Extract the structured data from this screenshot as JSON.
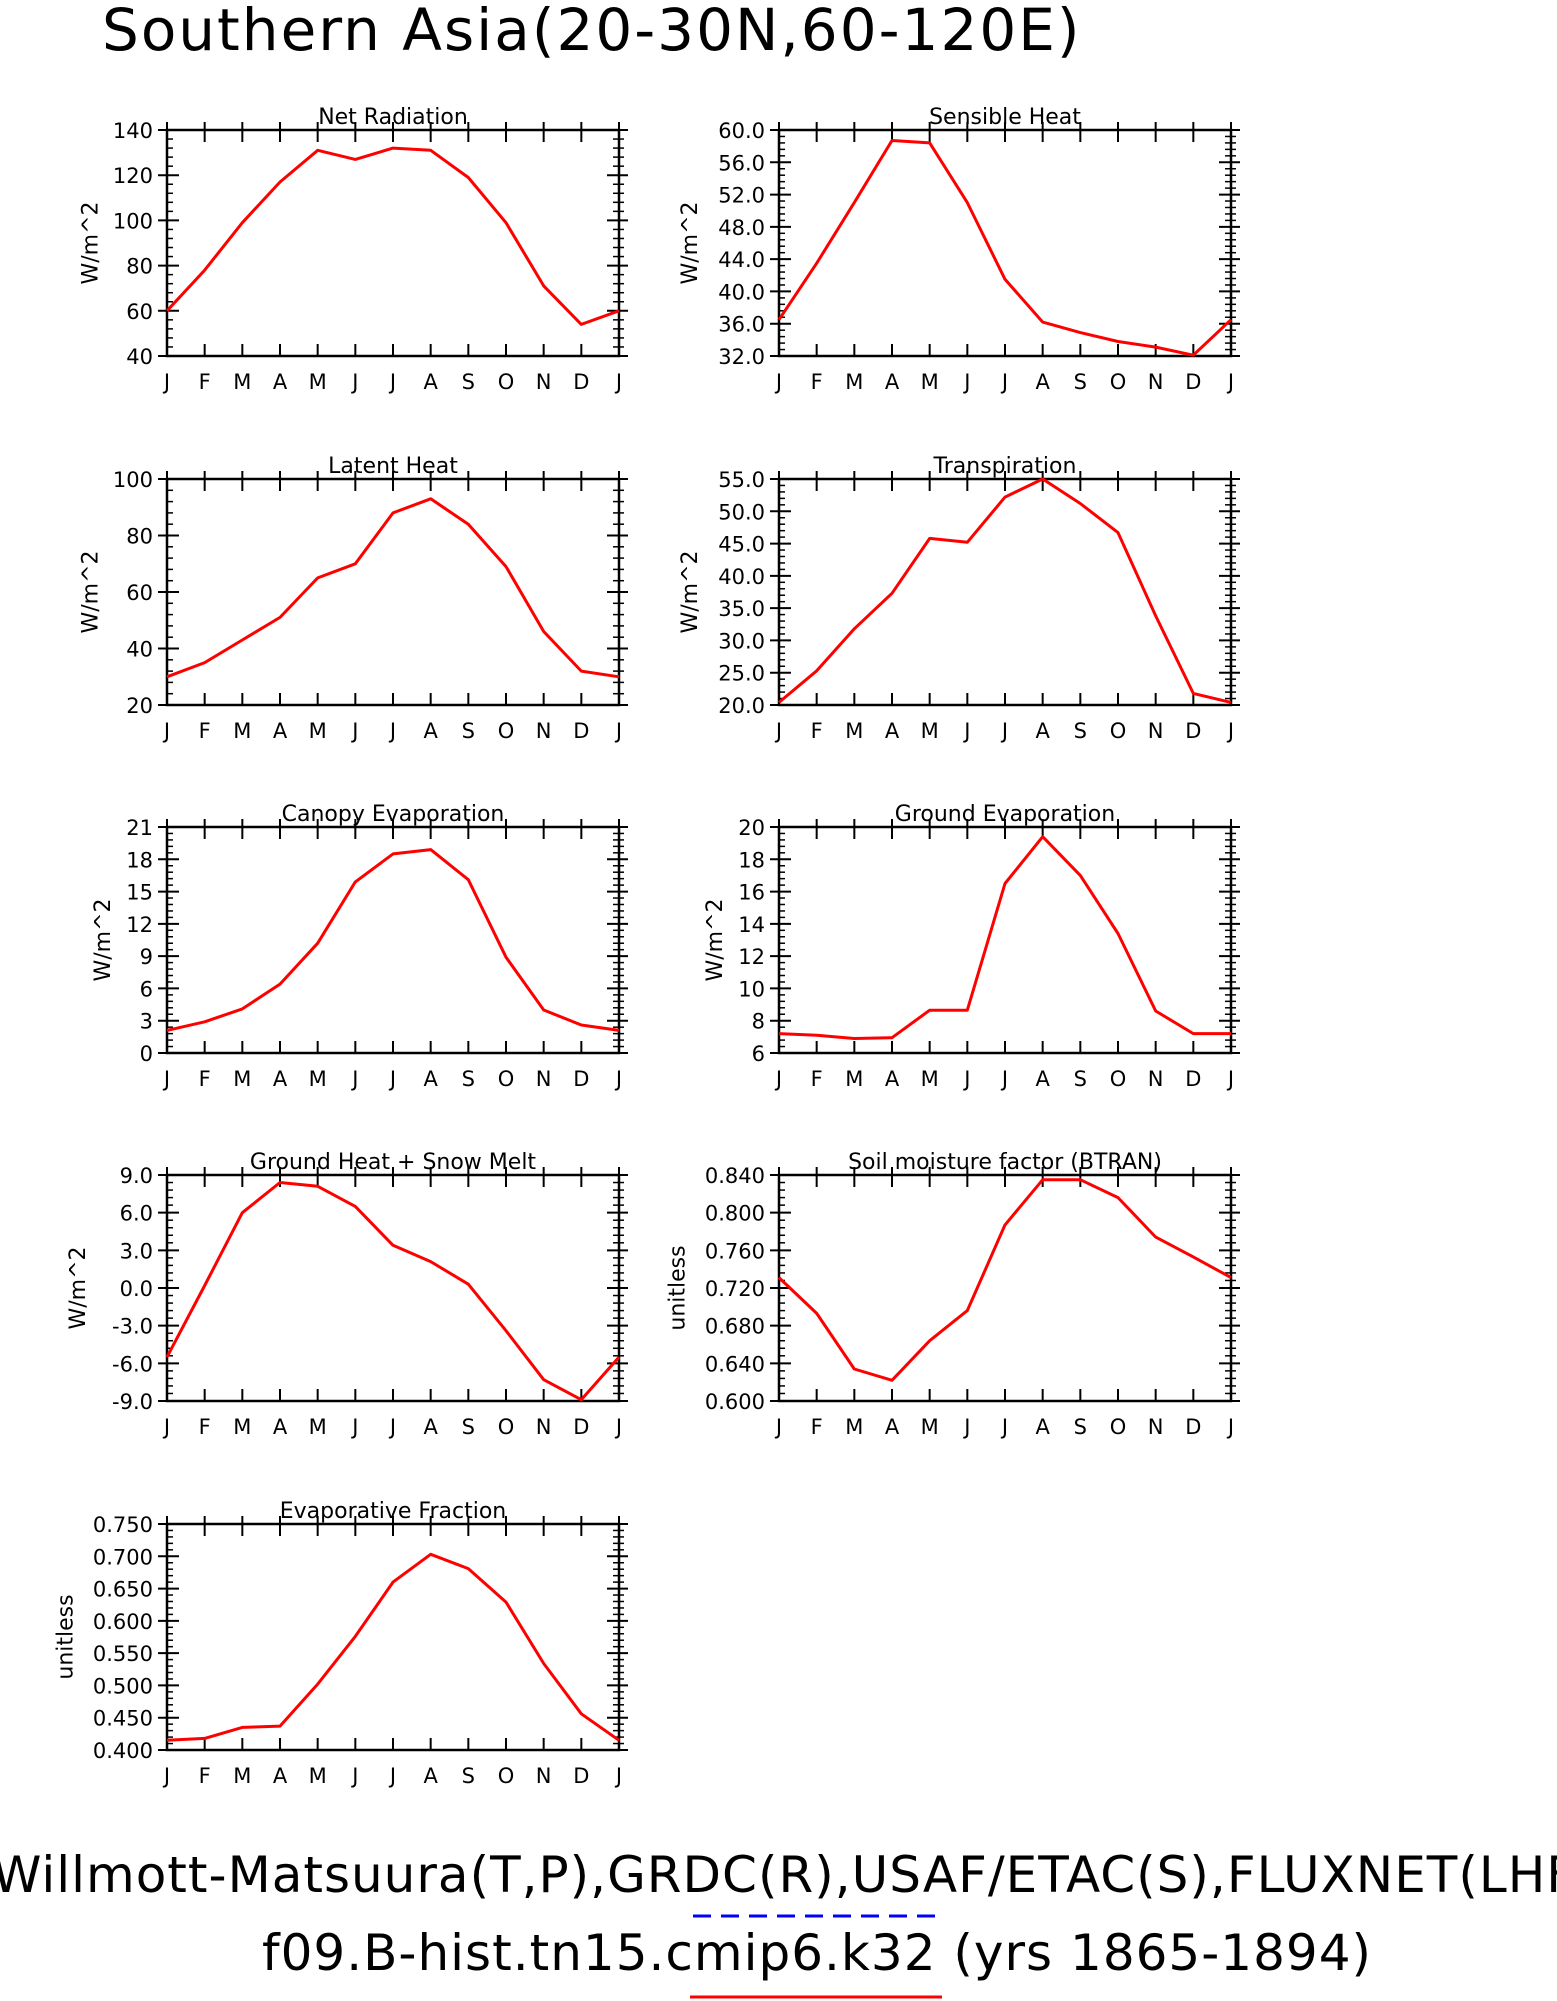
{
  "page": {
    "title": "Southern Asia(20-30N,60-120E)",
    "footer_line1": "Willmott-Matsuura(T,P),GRDC(R),USAF/ETAC(S),FLUXNET(LHF,GPP)",
    "footer_line2": "f09.B-hist.tn15.cmip6.k32 (yrs 1865-1894)"
  },
  "colors": {
    "series": "#ff0000",
    "dashed_underline": "#0000ff",
    "solid_underline": "#ff0000"
  },
  "chart_data": [
    {
      "type": "line",
      "title": "Net Radiation",
      "ylabel": "W/m^2",
      "categories": [
        "J",
        "F",
        "M",
        "A",
        "M",
        "J",
        "J",
        "A",
        "S",
        "O",
        "N",
        "D",
        "J"
      ],
      "ylim": [
        40,
        140
      ],
      "yticks": [
        "40",
        "60",
        "80",
        "100",
        "120",
        "140"
      ],
      "series": [
        {
          "values": [
            60,
            78,
            99,
            117,
            131,
            127,
            132,
            131,
            119,
            99,
            71,
            54,
            60
          ]
        }
      ]
    },
    {
      "type": "line",
      "title": "Sensible Heat",
      "ylabel": "W/m^2",
      "categories": [
        "J",
        "F",
        "M",
        "A",
        "M",
        "J",
        "J",
        "A",
        "S",
        "O",
        "N",
        "D",
        "J"
      ],
      "ylim": [
        32,
        60
      ],
      "yticks": [
        "32.0",
        "36.0",
        "40.0",
        "44.0",
        "48.0",
        "52.0",
        "56.0",
        "60.0"
      ],
      "series": [
        {
          "values": [
            36.5,
            43.5,
            51,
            58.7,
            58.4,
            51,
            41.5,
            36.2,
            34.9,
            33.8,
            33.1,
            32.1,
            36.5
          ]
        }
      ]
    },
    {
      "type": "line",
      "title": "Latent Heat",
      "ylabel": "W/m^2",
      "categories": [
        "J",
        "F",
        "M",
        "A",
        "M",
        "J",
        "J",
        "A",
        "S",
        "O",
        "N",
        "D",
        "J"
      ],
      "ylim": [
        20,
        100
      ],
      "yticks": [
        "20",
        "40",
        "60",
        "80",
        "100"
      ],
      "series": [
        {
          "values": [
            30,
            35,
            43,
            51,
            65,
            70,
            88,
            93,
            84,
            69,
            46,
            32,
            30
          ]
        }
      ]
    },
    {
      "type": "line",
      "title": "Transpiration",
      "ylabel": "W/m^2",
      "categories": [
        "J",
        "F",
        "M",
        "A",
        "M",
        "J",
        "J",
        "A",
        "S",
        "O",
        "N",
        "D",
        "J"
      ],
      "ylim": [
        20,
        55
      ],
      "yticks": [
        "20.0",
        "25.0",
        "30.0",
        "35.0",
        "40.0",
        "45.0",
        "50.0",
        "55.0"
      ],
      "series": [
        {
          "values": [
            20.4,
            25.3,
            31.8,
            37.3,
            45.8,
            45.2,
            52.2,
            55,
            51.2,
            46.7,
            33.8,
            21.8,
            20.4
          ]
        }
      ]
    },
    {
      "type": "line",
      "title": "Canopy Evaporation",
      "ylabel": "W/m^2",
      "categories": [
        "J",
        "F",
        "M",
        "A",
        "M",
        "J",
        "J",
        "A",
        "S",
        "O",
        "N",
        "D",
        "J"
      ],
      "ylim": [
        0,
        21
      ],
      "yticks": [
        "0",
        "3",
        "6",
        "9",
        "12",
        "15",
        "18",
        "21"
      ],
      "series": [
        {
          "values": [
            2.1,
            2.9,
            4.1,
            6.4,
            10.2,
            15.9,
            18.5,
            18.9,
            16.1,
            8.9,
            4,
            2.6,
            2.1
          ]
        }
      ]
    },
    {
      "type": "line",
      "title": "Ground Evaporation",
      "ylabel": "W/m^2",
      "categories": [
        "J",
        "F",
        "M",
        "A",
        "M",
        "J",
        "J",
        "A",
        "S",
        "O",
        "N",
        "D",
        "J"
      ],
      "ylim": [
        6,
        20
      ],
      "yticks": [
        "6",
        "8",
        "10",
        "12",
        "14",
        "16",
        "18",
        "20"
      ],
      "series": [
        {
          "values": [
            7.2,
            7.1,
            6.9,
            6.95,
            8.65,
            8.65,
            16.5,
            19.4,
            17,
            13.4,
            8.6,
            7.2,
            7.2
          ]
        }
      ]
    },
    {
      "type": "line",
      "title": "Ground Heat + Snow Melt",
      "ylabel": "W/m^2",
      "categories": [
        "J",
        "F",
        "M",
        "A",
        "M",
        "J",
        "J",
        "A",
        "S",
        "O",
        "N",
        "D",
        "J"
      ],
      "ylim": [
        -9,
        9
      ],
      "yticks": [
        "-9.0",
        "-6.0",
        "-3.0",
        "0.0",
        "3.0",
        "6.0",
        "9.0"
      ],
      "series": [
        {
          "values": [
            -5.5,
            0.2,
            6,
            8.4,
            8.1,
            6.5,
            3.4,
            2.1,
            0.3,
            -3.4,
            -7.3,
            -8.9,
            -5.5
          ]
        }
      ]
    },
    {
      "type": "line",
      "title": "Soil moisture factor (BTRAN)",
      "ylabel": "unitless",
      "categories": [
        "J",
        "F",
        "M",
        "A",
        "M",
        "J",
        "J",
        "A",
        "S",
        "O",
        "N",
        "D",
        "J"
      ],
      "ylim": [
        0.6,
        0.84
      ],
      "yticks": [
        "0.600",
        "0.640",
        "0.680",
        "0.720",
        "0.760",
        "0.800",
        "0.840"
      ],
      "series": [
        {
          "values": [
            0.731,
            0.693,
            0.634,
            0.622,
            0.664,
            0.696,
            0.787,
            0.835,
            0.835,
            0.816,
            0.774,
            0.753,
            0.731
          ]
        }
      ]
    },
    {
      "type": "line",
      "title": "Evaporative Fraction",
      "ylabel": "unitless",
      "categories": [
        "J",
        "F",
        "M",
        "A",
        "M",
        "J",
        "J",
        "A",
        "S",
        "O",
        "N",
        "D",
        "J"
      ],
      "ylim": [
        0.4,
        0.75
      ],
      "yticks": [
        "0.400",
        "0.450",
        "0.500",
        "0.550",
        "0.600",
        "0.650",
        "0.700",
        "0.750"
      ],
      "series": [
        {
          "values": [
            0.415,
            0.418,
            0.435,
            0.437,
            0.502,
            0.576,
            0.66,
            0.703,
            0.681,
            0.629,
            0.534,
            0.456,
            0.415
          ]
        }
      ]
    }
  ]
}
